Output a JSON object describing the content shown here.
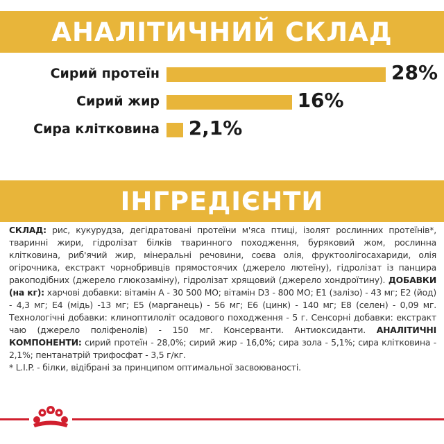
{
  "analysis": {
    "title": "АНАЛІТИЧНИЙ СКЛАД",
    "rows": [
      {
        "label": "Сирий протеїн",
        "value": "28%",
        "percent": 28
      },
      {
        "label": "Сирий жир",
        "value": "16%",
        "percent": 16
      },
      {
        "label": "Сира клітковина",
        "value": "2,1%",
        "percent": 2.1
      }
    ]
  },
  "ingredients": {
    "title": "ІНГРЕДІЄНТИ",
    "composition_label": "СКЛАД:",
    "composition_text": " рис, кукурудза, дегідратовані протеїни м'яса птиці, ізолят рослинних протеїнів*, тваринні жири, гідролізат білків тваринного походження, буряковий жом, рослинна клітковина, риб'ячий жир, мінеральні речовини, соєва олія, фруктоолігосахариди, олія огірочника, екстракт чорнобривців прямостоячих (джерело лютеїну), гідролізат із панцира ракоподібних (джерело глюкозаміну), гідролізат хрящовий (джерело хондроїтину). ",
    "additives_label": "ДОБАВКИ (на кг):",
    "additives_text": " харчові добавки: вітамін А - 30 500 МО; вітамін D3 - 800 МО; Е1 (залізо) - 43 мг; Е2 (йод) - 4,3 мг; Е4 (мідь) -13 мг; Е5 (марганець) - 56 мг; Е6 (цинк) - 140 мг; Е8 (селен) - 0,09 мг. Технологічні добавки: клиноптилоліт осадового походження - 5 г. Сенсорні добавки: екстракт чаю (джерело поліфенолів) - 150 мг. Консерванти. Антиоксиданти. ",
    "components_label": "АНАЛІТИЧНІ КОМПОНЕНТИ:",
    "components_text": " сирий протеїн - 28,0%; сирий жир - 16,0%; сира зола - 5,1%; сира клітковина - 2,1%; пентанатрій трифосфат - 3,5 г/кг.",
    "footnote": "* L.I.P. - білки, відібрані за принципом оптимальної засвоюваності."
  },
  "colors": {
    "accent": "#e8b53a",
    "brand_red": "#d11f2e"
  },
  "logo": {
    "icon": "royal-canin-crown-icon"
  }
}
